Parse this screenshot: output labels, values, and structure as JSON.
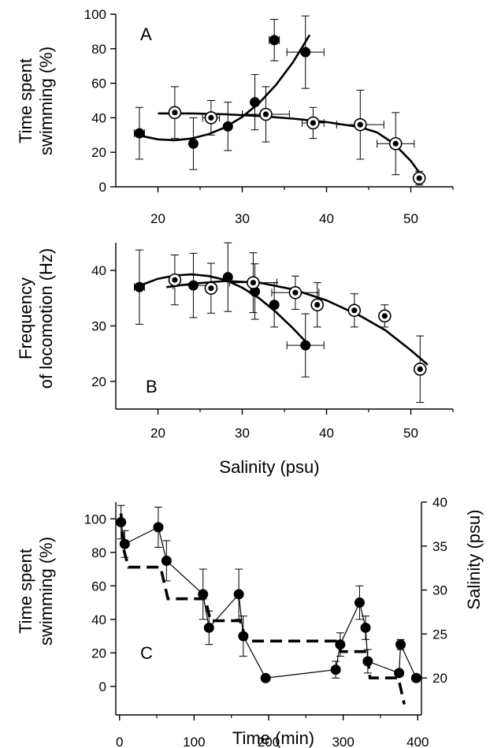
{
  "chart_data": [
    {
      "panel": "A",
      "type": "scatter",
      "ylabel": [
        "Time spent",
        "swimming (%)"
      ],
      "xlabel": "",
      "xlim": [
        15,
        55
      ],
      "ylim": [
        0,
        100
      ],
      "xticks": [
        20,
        30,
        40,
        50
      ],
      "yticks": [
        0,
        20,
        40,
        60,
        80,
        100
      ],
      "series": [
        {
          "marker": "filled",
          "points": [
            {
              "x": 17.8,
              "y": 31,
              "xerr": 0.6,
              "yerr": 15
            },
            {
              "x": 24.2,
              "y": 25,
              "xerr": 0,
              "yerr": 15
            },
            {
              "x": 28.3,
              "y": 35,
              "xerr": 0,
              "yerr": 14
            },
            {
              "x": 31.5,
              "y": 49,
              "xerr": 0,
              "yerr": 16
            },
            {
              "x": 33.8,
              "y": 85,
              "xerr": 0.6,
              "yerr": 12
            },
            {
              "x": 37.5,
              "y": 78,
              "xerr": 2.2,
              "yerr": 21
            }
          ],
          "fit": [
            [
              17.5,
              30
            ],
            [
              20,
              27.5
            ],
            [
              22,
              27
            ],
            [
              24,
              28
            ],
            [
              26,
              30.5
            ],
            [
              28,
              34.5
            ],
            [
              30,
              40.5
            ],
            [
              32,
              48.5
            ],
            [
              34,
              59
            ],
            [
              36,
              72
            ],
            [
              38,
              88
            ]
          ]
        },
        {
          "marker": "open",
          "points": [
            {
              "x": 22,
              "y": 43,
              "xerr": 0,
              "yerr": 15
            },
            {
              "x": 26.3,
              "y": 40,
              "xerr": 1,
              "yerr": 10
            },
            {
              "x": 32.8,
              "y": 42,
              "xerr": 2.8,
              "yerr": 16
            },
            {
              "x": 38.4,
              "y": 37,
              "xerr": 1.3,
              "yerr": 9
            },
            {
              "x": 44,
              "y": 36,
              "xerr": 2.8,
              "yerr": 20
            },
            {
              "x": 48.2,
              "y": 25,
              "xerr": 2.2,
              "yerr": 18
            },
            {
              "x": 51,
              "y": 5,
              "xerr": 0,
              "yerr": 4
            }
          ],
          "fit": [
            [
              20,
              42.5
            ],
            [
              24,
              42.5
            ],
            [
              28,
              42
            ],
            [
              32,
              41
            ],
            [
              36,
              39.5
            ],
            [
              40,
              37.5
            ],
            [
              44,
              34.5
            ],
            [
              46,
              31.5
            ],
            [
              48,
              25
            ],
            [
              50,
              15
            ],
            [
              51.5,
              5
            ]
          ]
        }
      ]
    },
    {
      "panel": "B",
      "type": "scatter",
      "ylabel": [
        "Frequency",
        "of locomotion (Hz)"
      ],
      "xlabel": "Salinity (psu)",
      "xlim": [
        15,
        55
      ],
      "ylim": [
        15,
        45
      ],
      "xticks": [
        20,
        30,
        40,
        50
      ],
      "yticks": [
        20,
        30,
        40
      ],
      "series": [
        {
          "marker": "filled",
          "points": [
            {
              "x": 17.8,
              "y": 37,
              "xerr": 0.6,
              "yerr": 6.7
            },
            {
              "x": 24.2,
              "y": 37.3,
              "xerr": 2.4,
              "yerr": 5.8
            },
            {
              "x": 28.3,
              "y": 38.8,
              "xerr": 0,
              "yerr": 6.2
            },
            {
              "x": 31.5,
              "y": 36.2,
              "xerr": 0,
              "yerr": 5
            },
            {
              "x": 33.8,
              "y": 33.8,
              "xerr": 0,
              "yerr": 4
            },
            {
              "x": 37.5,
              "y": 26.5,
              "xerr": 2.2,
              "yerr": 5.7
            }
          ],
          "fit": [
            [
              17.5,
              37.1
            ],
            [
              20,
              38.5
            ],
            [
              22,
              39.1
            ],
            [
              24,
              39.3
            ],
            [
              26,
              39
            ],
            [
              28,
              38.3
            ],
            [
              30,
              36.9
            ],
            [
              32,
              35
            ],
            [
              34,
              32.5
            ],
            [
              36,
              29.6
            ],
            [
              38,
              26.4
            ]
          ]
        },
        {
          "marker": "open",
          "points": [
            {
              "x": 22,
              "y": 38.3,
              "xerr": 0,
              "yerr": 4.5
            },
            {
              "x": 26.3,
              "y": 36.8,
              "xerr": 0,
              "yerr": 4.5
            },
            {
              "x": 31.3,
              "y": 37.8,
              "xerr": 2.8,
              "yerr": 5.4
            },
            {
              "x": 36.3,
              "y": 36,
              "xerr": 2.8,
              "yerr": 3
            },
            {
              "x": 38.9,
              "y": 33.8,
              "xerr": 0,
              "yerr": 4
            },
            {
              "x": 43.3,
              "y": 32.8,
              "xerr": 0,
              "yerr": 3
            },
            {
              "x": 46.9,
              "y": 31.8,
              "xerr": 0,
              "yerr": 2
            },
            {
              "x": 51.1,
              "y": 22.2,
              "xerr": 0,
              "yerr": 6
            }
          ],
          "fit": [
            [
              21,
              37
            ],
            [
              24,
              37.6
            ],
            [
              28,
              38.1
            ],
            [
              32,
              37.8
            ],
            [
              36,
              36.6
            ],
            [
              40,
              34.6
            ],
            [
              44,
              31.8
            ],
            [
              47,
              29.2
            ],
            [
              50,
              25.6
            ],
            [
              52,
              23
            ]
          ]
        }
      ]
    },
    {
      "panel": "C",
      "type": "line",
      "ylabel": [
        "Time spent",
        "swimming (%)"
      ],
      "y2label": "Salinity (psu)",
      "xlabel": "Time (min)",
      "xlim": [
        -5,
        405
      ],
      "ylim": [
        -17,
        110
      ],
      "y2lim": [
        15.8,
        40
      ],
      "xticks": [
        0,
        100,
        200,
        300,
        400
      ],
      "yticks": [
        0,
        20,
        40,
        60,
        80,
        100
      ],
      "y2ticks": [
        20,
        25,
        30,
        35,
        40
      ],
      "swimming": [
        {
          "x": 2,
          "y": 98,
          "err": 10
        },
        {
          "x": 7,
          "y": 85,
          "err": 8
        },
        {
          "x": 52,
          "y": 95,
          "err": 12
        },
        {
          "x": 63,
          "y": 75,
          "err": 12
        },
        {
          "x": 112,
          "y": 55,
          "err": 15
        },
        {
          "x": 120,
          "y": 35,
          "err": 10
        },
        {
          "x": 160,
          "y": 55,
          "err": 15
        },
        {
          "x": 166,
          "y": 30,
          "err": 12
        },
        {
          "x": 196,
          "y": 5,
          "err": 0
        },
        {
          "x": 290,
          "y": 10,
          "err": 5
        },
        {
          "x": 296,
          "y": 25,
          "err": 7
        },
        {
          "x": 322,
          "y": 50,
          "err": 10
        },
        {
          "x": 330,
          "y": 35,
          "err": 7
        },
        {
          "x": 333,
          "y": 15,
          "err": 7
        },
        {
          "x": 375,
          "y": 8,
          "err": 0
        },
        {
          "x": 377,
          "y": 25,
          "err": 3
        },
        {
          "x": 398,
          "y": 5,
          "err": 0
        }
      ],
      "salinity": [
        [
          2,
          38.7
        ],
        [
          6,
          34.5
        ],
        [
          12,
          32.6
        ],
        [
          55,
          32.6
        ],
        [
          65,
          29
        ],
        [
          115,
          29
        ],
        [
          122,
          26.5
        ],
        [
          162,
          26.5
        ],
        [
          170,
          24.2
        ],
        [
          290,
          24.2
        ],
        [
          297,
          23
        ],
        [
          332,
          23
        ],
        [
          336,
          20
        ],
        [
          374,
          20
        ],
        [
          382,
          17
        ]
      ]
    }
  ]
}
